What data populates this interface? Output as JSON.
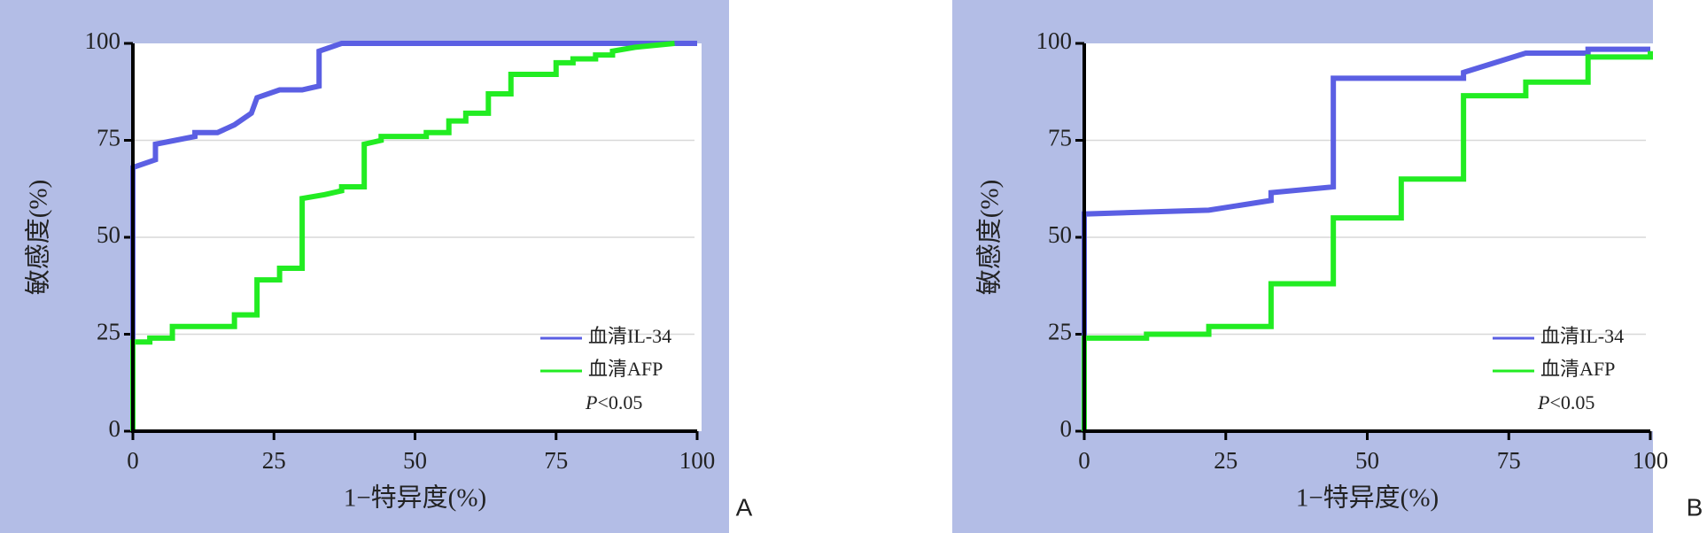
{
  "chart_data": [
    {
      "type": "line",
      "panel_label": "A",
      "x_label": "1−特异度(%)",
      "y_label": "敏感度(%)",
      "xlim": [
        0,
        100
      ],
      "ylim": [
        0,
        100
      ],
      "xticks": [
        0,
        25,
        50,
        75,
        100
      ],
      "yticks": [
        0,
        25,
        50,
        75,
        100
      ],
      "grid": true,
      "annotation": [
        "P",
        "<0.05"
      ],
      "legend": "lower right",
      "series": [
        {
          "name": "血清IL-34",
          "color": "#5b5fe3",
          "x": [
            0,
            0,
            4,
            4,
            11,
            11,
            15,
            18,
            21,
            22,
            26,
            30,
            33,
            33,
            37,
            100
          ],
          "values": [
            0,
            68,
            70,
            74,
            76,
            77,
            77,
            79,
            82,
            86,
            88,
            88,
            89,
            98,
            100,
            100
          ]
        },
        {
          "name": "血清AFP",
          "color": "#22ec22",
          "x": [
            0,
            0,
            3,
            3,
            7,
            7,
            18,
            18,
            22,
            22,
            26,
            26,
            30,
            30,
            34,
            37,
            37,
            41,
            41,
            44,
            44,
            52,
            52,
            56,
            56,
            59,
            59,
            63,
            63,
            67,
            67,
            75,
            75,
            78,
            78,
            82,
            82,
            85,
            85,
            89,
            96
          ],
          "values": [
            0,
            23,
            23,
            24,
            24,
            27,
            27,
            30,
            30,
            39,
            39,
            42,
            42,
            60,
            61,
            62,
            63,
            63,
            74,
            75,
            76,
            76,
            77,
            77,
            80,
            80,
            82,
            82,
            87,
            87,
            92,
            92,
            95,
            95,
            96,
            96,
            97,
            97,
            98,
            99,
            100
          ]
        }
      ]
    },
    {
      "type": "line",
      "panel_label": "B",
      "x_label": "1−特异度(%)",
      "y_label": "敏感度(%)",
      "xlim": [
        0,
        100
      ],
      "ylim": [
        0,
        100
      ],
      "xticks": [
        0,
        25,
        50,
        75,
        100
      ],
      "yticks": [
        0,
        25,
        50,
        75,
        100
      ],
      "grid": true,
      "annotation": [
        "P",
        "<0.05"
      ],
      "legend": "lower right",
      "series": [
        {
          "name": "血清IL-34",
          "color": "#5b5fe3",
          "x": [
            0,
            0,
            11,
            22,
            33,
            33,
            44,
            44,
            67,
            67,
            78,
            89,
            89,
            100
          ],
          "values": [
            0,
            56,
            56.5,
            57,
            59.5,
            61.5,
            63,
            91,
            91,
            92.5,
            97.5,
            97.5,
            98.5,
            98.5
          ]
        },
        {
          "name": "血清AFP",
          "color": "#22ec22",
          "x": [
            0,
            0,
            11,
            11,
            22,
            22,
            33,
            33,
            44,
            44,
            56,
            56,
            67,
            67,
            78,
            78,
            89,
            89,
            100,
            100
          ],
          "values": [
            0,
            24,
            24,
            25,
            25,
            27,
            27,
            38,
            38,
            55,
            55,
            65,
            65,
            86.5,
            86.5,
            90,
            90,
            96.5,
            96.5,
            98
          ]
        }
      ]
    }
  ]
}
